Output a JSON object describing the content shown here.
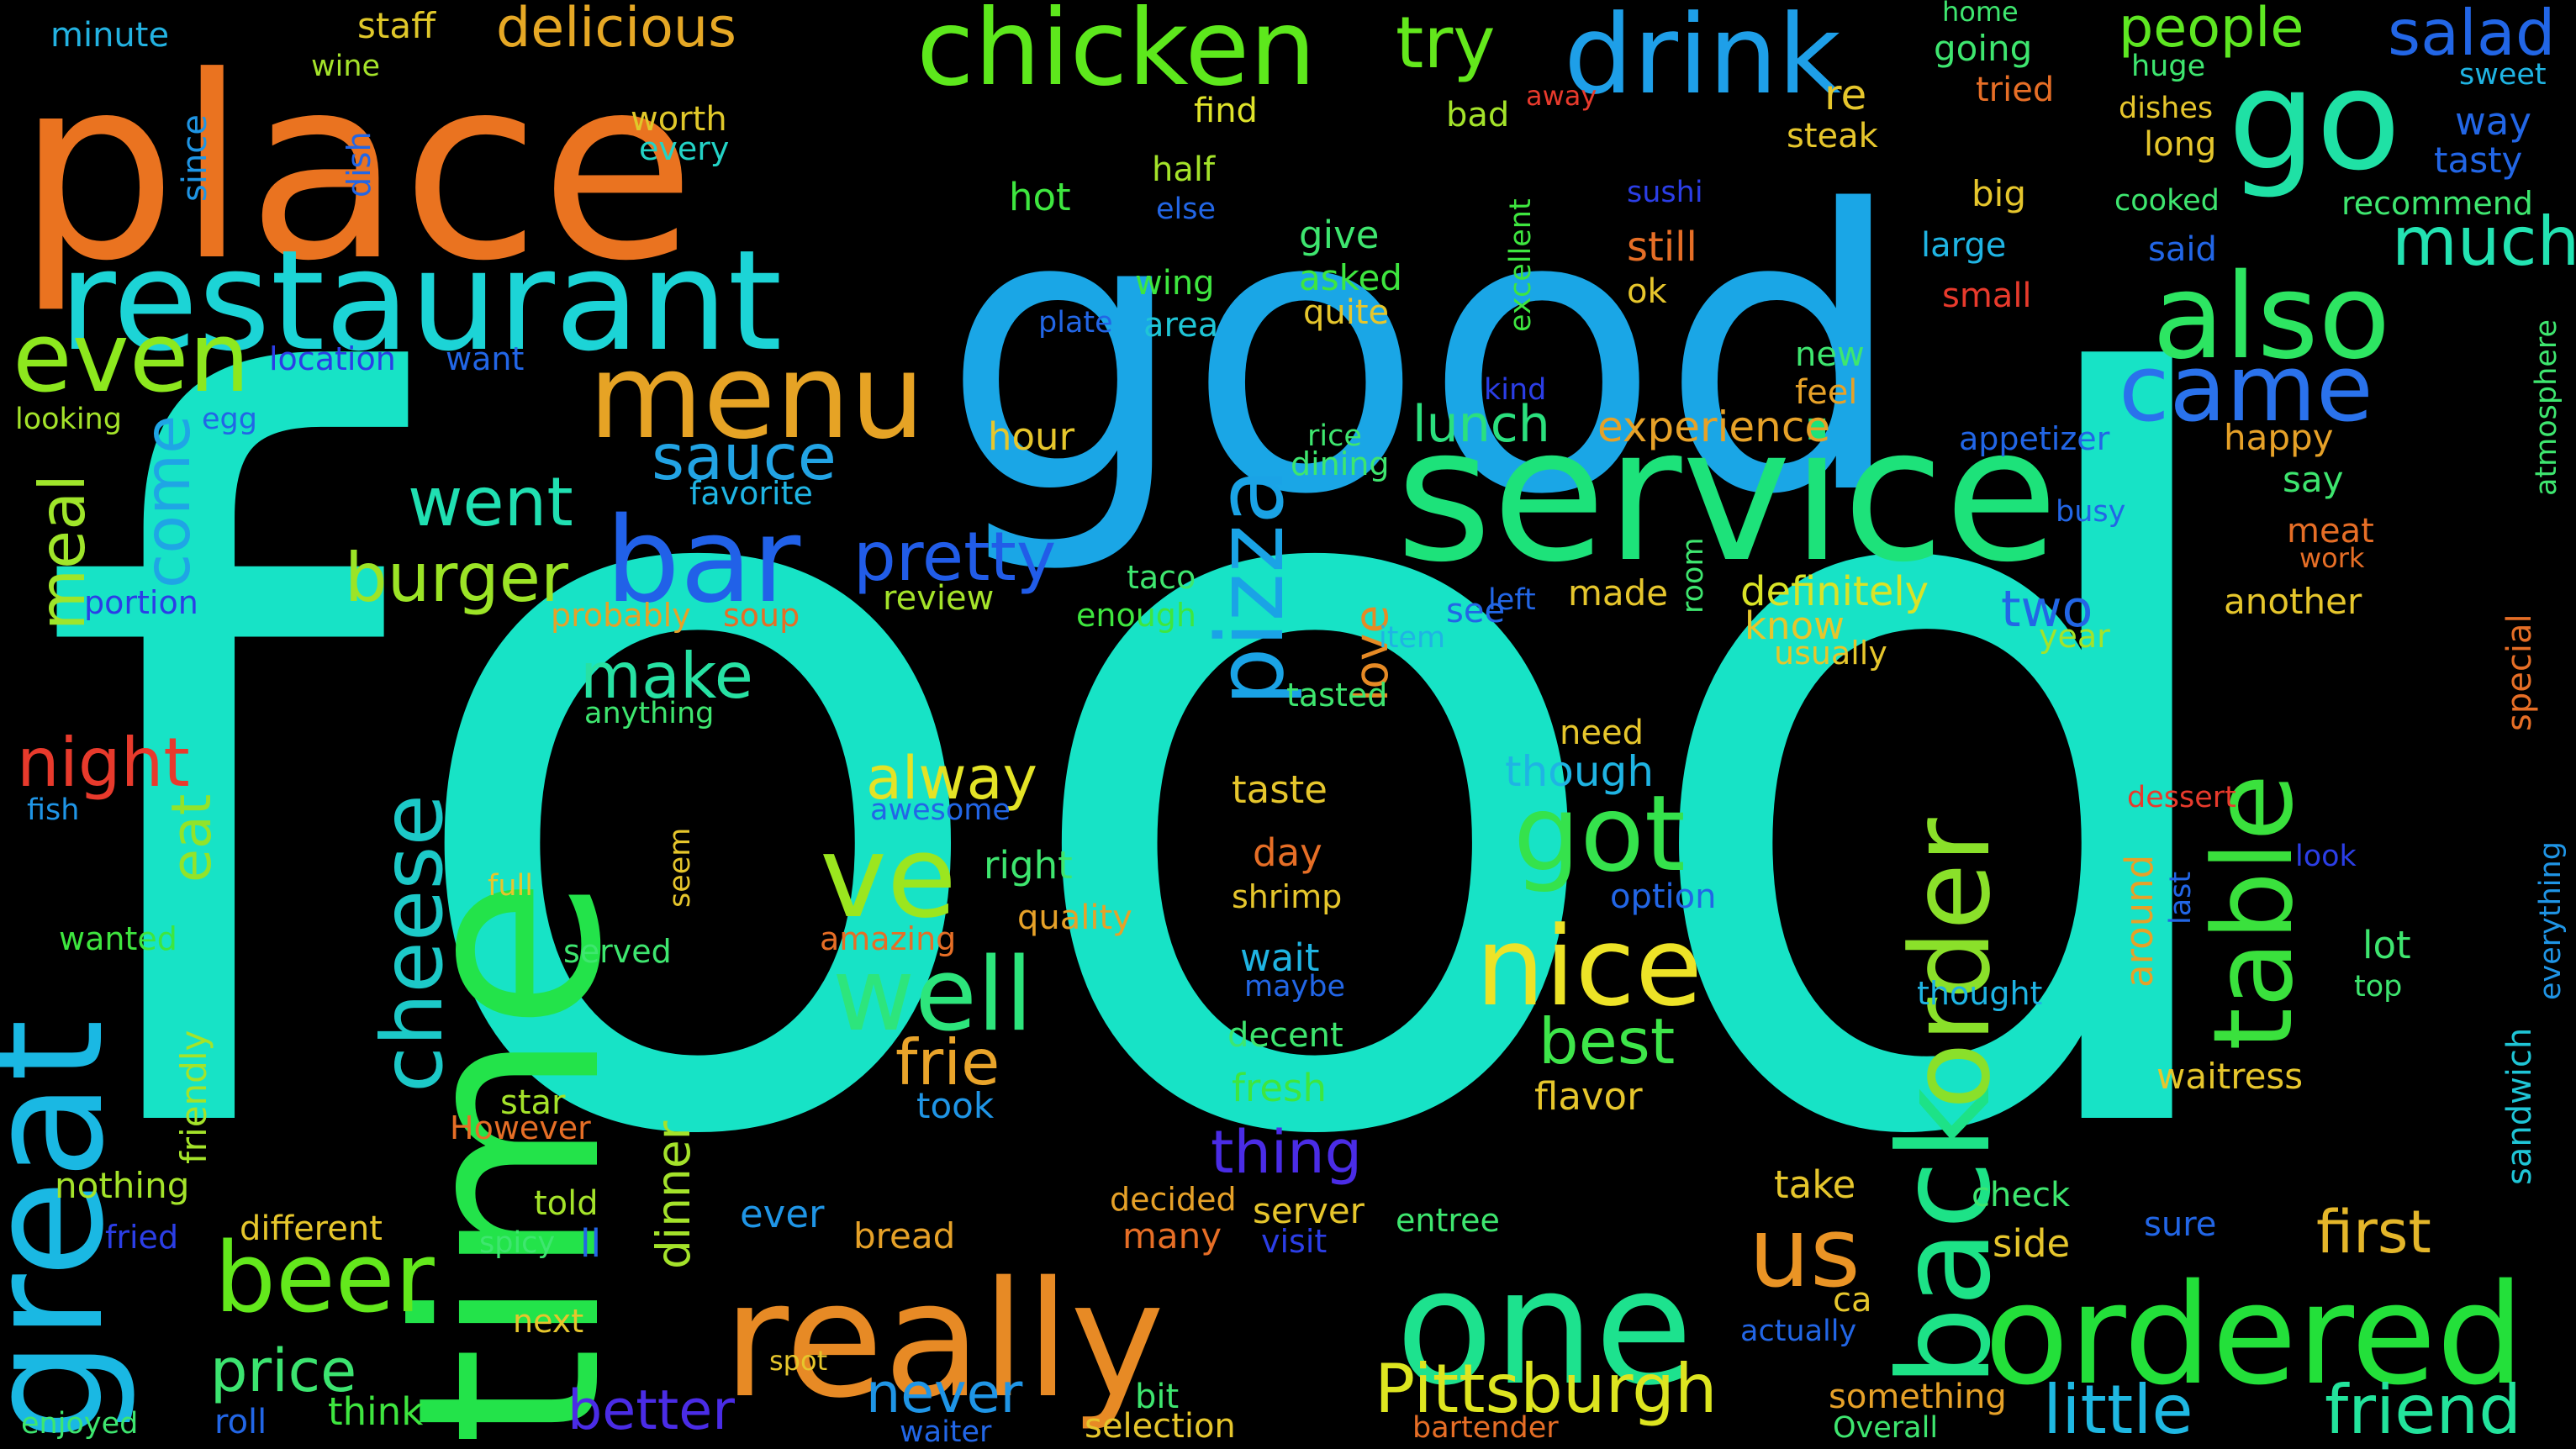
{
  "background": "#000000",
  "words": [
    {
      "t": "food",
      "c": "#17e3c6"
    },
    {
      "t": "good",
      "c": "#1aa6e6"
    },
    {
      "t": "place",
      "c": "#ea7320"
    },
    {
      "t": "time",
      "c": "#23e34a"
    },
    {
      "t": "service",
      "c": "#1de27a"
    },
    {
      "t": "great",
      "c": "#1ab8e3"
    },
    {
      "t": "really",
      "c": "#e78a25"
    },
    {
      "t": "one",
      "c": "#1de28e"
    },
    {
      "t": "restaurant",
      "c": "#1cd4d6"
    },
    {
      "t": "ordered",
      "c": "#23e03a"
    },
    {
      "t": "back",
      "c": "#1de287"
    },
    {
      "t": "order",
      "c": "#8ae02a"
    },
    {
      "t": "drink",
      "c": "#1e9fe8"
    },
    {
      "t": "chicken",
      "c": "#5de81c"
    },
    {
      "t": "go",
      "c": "#1fe1a5"
    },
    {
      "t": "menu",
      "c": "#e6a325"
    },
    {
      "t": "also",
      "c": "#2de562"
    },
    {
      "t": "bar",
      "c": "#2161e8"
    },
    {
      "t": "table",
      "c": "#3ae13d"
    },
    {
      "t": "pizza",
      "c": "#1aa3e6"
    },
    {
      "t": "nice",
      "c": "#ede327"
    },
    {
      "t": "ve",
      "c": "#9be61f"
    },
    {
      "t": "well",
      "c": "#2de57c"
    },
    {
      "t": "got",
      "c": "#35e24c"
    },
    {
      "t": "even",
      "c": "#8de81e"
    },
    {
      "t": "came",
      "c": "#2a72ec"
    },
    {
      "t": "beer",
      "c": "#63e81c"
    },
    {
      "t": "cheese",
      "c": "#1cc9c8"
    },
    {
      "t": "Pittsburgh",
      "c": "#dde520"
    },
    {
      "t": "little",
      "c": "#1fb8e2"
    },
    {
      "t": "friend",
      "c": "#23e39c"
    },
    {
      "t": "us",
      "c": "#ea9425"
    },
    {
      "t": "much",
      "c": "#23e3b2"
    },
    {
      "t": "people",
      "c": "#5ee722"
    },
    {
      "t": "salad",
      "c": "#2266e6"
    },
    {
      "t": "try",
      "c": "#63e81c"
    },
    {
      "t": "delicious",
      "c": "#e6a825"
    },
    {
      "t": "burger",
      "c": "#9ce426"
    },
    {
      "t": "pretty",
      "c": "#215ce8"
    },
    {
      "t": "went",
      "c": "#20e0b2"
    },
    {
      "t": "sauce",
      "c": "#22a3e4"
    },
    {
      "t": "meal",
      "c": "#9fe52a"
    },
    {
      "t": "come",
      "c": "#1fa5e5"
    },
    {
      "t": "night",
      "c": "#e83a2c"
    },
    {
      "t": "eat",
      "c": "#93e32a"
    },
    {
      "t": "alway",
      "c": "#e4e326"
    },
    {
      "t": "frie",
      "c": "#e9a42a"
    },
    {
      "t": "best",
      "c": "#3ee64a"
    },
    {
      "t": "price",
      "c": "#3ce470"
    },
    {
      "t": "first",
      "c": "#e4b62a"
    },
    {
      "t": "make",
      "c": "#27e1a3"
    },
    {
      "t": "thing",
      "c": "#4a2ce6"
    },
    {
      "t": "love",
      "c": "#e68a25"
    },
    {
      "t": "lunch",
      "c": "#2be07e"
    },
    {
      "t": "experience",
      "c": "#e6a128"
    },
    {
      "t": "dinner",
      "c": "#a4e22a"
    },
    {
      "t": "better",
      "c": "#4a2ce6"
    },
    {
      "t": "never",
      "c": "#1f95e6"
    },
    {
      "t": "two",
      "c": "#2266e6"
    },
    {
      "t": "definitely",
      "c": "#d9e327"
    },
    {
      "t": "know",
      "c": "#e6c62c"
    },
    {
      "t": "staff",
      "c": "#e0c82a"
    },
    {
      "t": "minute",
      "c": "#23b2e1"
    },
    {
      "t": "wine",
      "c": "#a4e32a"
    },
    {
      "t": "since",
      "c": "#1f95e4"
    },
    {
      "t": "dish",
      "c": "#2266e6"
    },
    {
      "t": "worth",
      "c": "#e0c82a"
    },
    {
      "t": "every",
      "c": "#23d3c6"
    },
    {
      "t": "find",
      "c": "#dfe32a"
    },
    {
      "t": "bad",
      "c": "#a4e32a"
    },
    {
      "t": "half",
      "c": "#a4e32a"
    },
    {
      "t": "hot",
      "c": "#3ee63f"
    },
    {
      "t": "else",
      "c": "#2266e6"
    },
    {
      "t": "give",
      "c": "#3ee66f"
    },
    {
      "t": "asked",
      "c": "#3ee63f"
    },
    {
      "t": "quite",
      "c": "#e6c62c"
    },
    {
      "t": "wing",
      "c": "#3ee63f"
    },
    {
      "t": "plate",
      "c": "#2266e6"
    },
    {
      "t": "area",
      "c": "#1fc5d6"
    },
    {
      "t": "hour",
      "c": "#e6c62c"
    },
    {
      "t": "location",
      "c": "#2b3ee6"
    },
    {
      "t": "want",
      "c": "#2266e6"
    },
    {
      "t": "looking",
      "c": "#a4e32a"
    },
    {
      "t": "egg",
      "c": "#2266e6"
    },
    {
      "t": "favorite",
      "c": "#1fb4e3"
    },
    {
      "t": "portion",
      "c": "#2b3ee6"
    },
    {
      "t": "probably",
      "c": "#e6a128"
    },
    {
      "t": "soup",
      "c": "#e66e26"
    },
    {
      "t": "review",
      "c": "#a4e32a"
    },
    {
      "t": "taco",
      "c": "#3ee66f"
    },
    {
      "t": "enough",
      "c": "#3ee63f"
    },
    {
      "t": "anything",
      "c": "#3ee66f"
    },
    {
      "t": "fish",
      "c": "#1f95e6"
    },
    {
      "t": "awesome",
      "c": "#2266e6"
    },
    {
      "t": "right",
      "c": "#3ee66f"
    },
    {
      "t": "quality",
      "c": "#e6a128"
    },
    {
      "t": "full",
      "c": "#e6c62c"
    },
    {
      "t": "seem",
      "c": "#e6c62c"
    },
    {
      "t": "wanted",
      "c": "#3ee63f"
    },
    {
      "t": "served",
      "c": "#3ee66f"
    },
    {
      "t": "amazing",
      "c": "#e66e26"
    },
    {
      "t": "friendly",
      "c": "#a4e32a"
    },
    {
      "t": "star",
      "c": "#a4e32a"
    },
    {
      "t": "However",
      "c": "#e66e26"
    },
    {
      "t": "nothing",
      "c": "#a4e32a"
    },
    {
      "t": "told",
      "c": "#a4e32a"
    },
    {
      "t": "fried",
      "c": "#2b3ee6"
    },
    {
      "t": "different",
      "c": "#e6c62c"
    },
    {
      "t": "spicy",
      "c": "#3ee66f"
    },
    {
      "t": "ll",
      "c": "#2266e6"
    },
    {
      "t": "next",
      "c": "#e6c62c"
    },
    {
      "t": "spot",
      "c": "#e6c62c"
    },
    {
      "t": "enjoyed",
      "c": "#3ee66f"
    },
    {
      "t": "roll",
      "c": "#2266e6"
    },
    {
      "t": "think",
      "c": "#3ee63f"
    },
    {
      "t": "taste",
      "c": "#e6c62c"
    },
    {
      "t": "day",
      "c": "#e66e26"
    },
    {
      "t": "shrimp",
      "c": "#e6c62c"
    },
    {
      "t": "wait",
      "c": "#1fb4e3"
    },
    {
      "t": "maybe",
      "c": "#2266e6"
    },
    {
      "t": "decent",
      "c": "#3ee66f"
    },
    {
      "t": "fresh",
      "c": "#3ee63f"
    },
    {
      "t": "took",
      "c": "#1f95e6"
    },
    {
      "t": "decided",
      "c": "#e6a128"
    },
    {
      "t": "many",
      "c": "#e66e26"
    },
    {
      "t": "server",
      "c": "#e6c62c"
    },
    {
      "t": "visit",
      "c": "#2b3ee6"
    },
    {
      "t": "entree",
      "c": "#3ee66f"
    },
    {
      "t": "ever",
      "c": "#1f95e6"
    },
    {
      "t": "bread",
      "c": "#e6a128"
    },
    {
      "t": "bit",
      "c": "#3ee66f"
    },
    {
      "t": "selection",
      "c": "#e6c62c"
    },
    {
      "t": "need",
      "c": "#e6c62c"
    },
    {
      "t": "though",
      "c": "#1fb4e3"
    },
    {
      "t": "option",
      "c": "#2266e6"
    },
    {
      "t": "flavor",
      "c": "#e6c62c"
    },
    {
      "t": "tasted",
      "c": "#3ee66f"
    },
    {
      "t": "item",
      "c": "#1fb4e3"
    },
    {
      "t": "see",
      "c": "#2266e6"
    },
    {
      "t": "left",
      "c": "#2266e6"
    },
    {
      "t": "made",
      "c": "#e6c62c"
    },
    {
      "t": "room",
      "c": "#3ee66f"
    },
    {
      "t": "kind",
      "c": "#2b3ee6"
    },
    {
      "t": "rice",
      "c": "#3ee66f"
    },
    {
      "t": "dining",
      "c": "#3ee66f"
    },
    {
      "t": "new",
      "c": "#3ee66f"
    },
    {
      "t": "feel",
      "c": "#e6a128"
    },
    {
      "t": "excellent",
      "c": "#3ee63f"
    },
    {
      "t": "sushi",
      "c": "#2b3ee6"
    },
    {
      "t": "still",
      "c": "#e66e26"
    },
    {
      "t": "ok",
      "c": "#e6c62c"
    },
    {
      "t": "large",
      "c": "#1fb4e3"
    },
    {
      "t": "small",
      "c": "#e83a2c"
    },
    {
      "t": "big",
      "c": "#e6c62c"
    },
    {
      "t": "re",
      "c": "#e6c62c"
    },
    {
      "t": "steak",
      "c": "#e6c62c"
    },
    {
      "t": "away",
      "c": "#e83a2c"
    },
    {
      "t": "home",
      "c": "#3ee66f"
    },
    {
      "t": "going",
      "c": "#3ee66f"
    },
    {
      "t": "tried",
      "c": "#e66e26"
    },
    {
      "t": "huge",
      "c": "#3ee66f"
    },
    {
      "t": "dishes",
      "c": "#e6c62c"
    },
    {
      "t": "long",
      "c": "#e6c62c"
    },
    {
      "t": "cooked",
      "c": "#3ee66f"
    },
    {
      "t": "said",
      "c": "#2266e6"
    },
    {
      "t": "sweet",
      "c": "#1fb4e3"
    },
    {
      "t": "way",
      "c": "#2266e6"
    },
    {
      "t": "tasty",
      "c": "#2266e6"
    },
    {
      "t": "recommend",
      "c": "#3ee66f"
    },
    {
      "t": "atmosphere",
      "c": "#3ee66f"
    },
    {
      "t": "appetizer",
      "c": "#2266e6"
    },
    {
      "t": "happy",
      "c": "#e6a128"
    },
    {
      "t": "say",
      "c": "#3ee66f"
    },
    {
      "t": "busy",
      "c": "#2266e6"
    },
    {
      "t": "meat",
      "c": "#e66e26"
    },
    {
      "t": "work",
      "c": "#e66e26"
    },
    {
      "t": "another",
      "c": "#e6c62c"
    },
    {
      "t": "year",
      "c": "#a4e32a"
    },
    {
      "t": "usually",
      "c": "#e6c62c"
    },
    {
      "t": "special",
      "c": "#e66e26"
    },
    {
      "t": "dessert",
      "c": "#e83a2c"
    },
    {
      "t": "around",
      "c": "#e6a128"
    },
    {
      "t": "last",
      "c": "#2266e6"
    },
    {
      "t": "look",
      "c": "#2b3ee6"
    },
    {
      "t": "everything",
      "c": "#1f95e6"
    },
    {
      "t": "sandwich",
      "c": "#1fc5d6"
    },
    {
      "t": "lot",
      "c": "#3ee66f"
    },
    {
      "t": "top",
      "c": "#3ee66f"
    },
    {
      "t": "thought",
      "c": "#1fb4e3"
    },
    {
      "t": "waitress",
      "c": "#e6c62c"
    },
    {
      "t": "ca",
      "c": "#e6c62c"
    },
    {
      "t": "actually",
      "c": "#2266e6"
    },
    {
      "t": "take",
      "c": "#e6c62c"
    },
    {
      "t": "check",
      "c": "#3ee66f"
    },
    {
      "t": "sure",
      "c": "#2266e6"
    },
    {
      "t": "side",
      "c": "#e6c62c"
    },
    {
      "t": "something",
      "c": "#e6a128"
    },
    {
      "t": "Overall",
      "c": "#3ee66f"
    },
    {
      "t": "bartender",
      "c": "#e66e26"
    },
    {
      "t": "waiter",
      "c": "#2266e6"
    }
  ]
}
